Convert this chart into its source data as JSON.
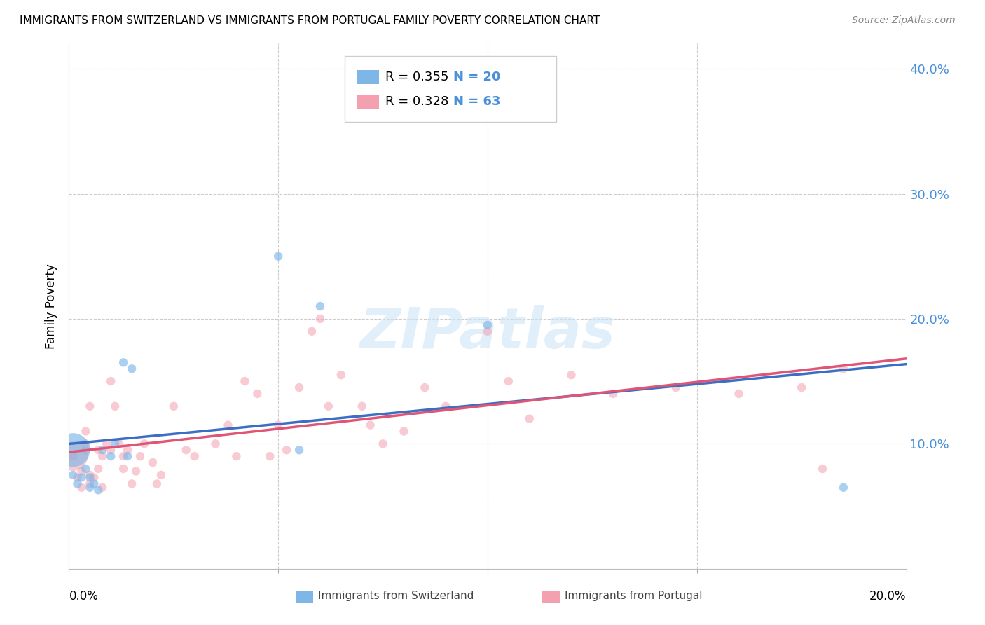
{
  "title": "IMMIGRANTS FROM SWITZERLAND VS IMMIGRANTS FROM PORTUGAL FAMILY POVERTY CORRELATION CHART",
  "source": "Source: ZipAtlas.com",
  "ylabel": "Family Poverty",
  "xlim": [
    0.0,
    0.2
  ],
  "ylim": [
    0.0,
    0.42
  ],
  "yticks": [
    0.1,
    0.2,
    0.3,
    0.4
  ],
  "ytick_labels": [
    "10.0%",
    "20.0%",
    "30.0%",
    "40.0%"
  ],
  "xticks": [
    0.0,
    0.05,
    0.1,
    0.15,
    0.2
  ],
  "watermark": "ZIPatlas",
  "legend_r1": "R = 0.355",
  "legend_n1": "N = 20",
  "legend_r2": "R = 0.328",
  "legend_n2": "N = 63",
  "label1": "Immigrants from Switzerland",
  "label2": "Immigrants from Portugal",
  "color1": "#7eb6e8",
  "color2": "#f4a0b0",
  "trendline1_color": "#3a6fc4",
  "trendline2_color": "#e05575",
  "background_color": "#ffffff",
  "swiss_x": [
    0.001,
    0.002,
    0.003,
    0.004,
    0.005,
    0.005,
    0.006,
    0.007,
    0.008,
    0.01,
    0.011,
    0.013,
    0.014,
    0.015,
    0.05,
    0.055,
    0.06,
    0.1,
    0.185,
    0.001
  ],
  "swiss_y": [
    0.075,
    0.068,
    0.073,
    0.08,
    0.065,
    0.073,
    0.068,
    0.063,
    0.095,
    0.09,
    0.1,
    0.165,
    0.09,
    0.16,
    0.25,
    0.095,
    0.21,
    0.195,
    0.065,
    0.095
  ],
  "swiss_size": [
    80,
    80,
    80,
    80,
    80,
    80,
    80,
    80,
    80,
    80,
    80,
    80,
    80,
    80,
    80,
    80,
    80,
    80,
    80,
    1200
  ],
  "port_x": [
    0.001,
    0.002,
    0.003,
    0.003,
    0.004,
    0.004,
    0.004,
    0.005,
    0.005,
    0.005,
    0.006,
    0.007,
    0.007,
    0.008,
    0.008,
    0.009,
    0.01,
    0.01,
    0.011,
    0.012,
    0.013,
    0.013,
    0.014,
    0.015,
    0.016,
    0.017,
    0.018,
    0.02,
    0.021,
    0.022,
    0.025,
    0.028,
    0.03,
    0.035,
    0.038,
    0.04,
    0.042,
    0.045,
    0.048,
    0.05,
    0.052,
    0.055,
    0.058,
    0.06,
    0.062,
    0.065,
    0.07,
    0.072,
    0.075,
    0.08,
    0.085,
    0.09,
    0.1,
    0.105,
    0.11,
    0.12,
    0.13,
    0.145,
    0.16,
    0.175,
    0.18,
    0.185,
    0.001
  ],
  "port_y": [
    0.09,
    0.073,
    0.065,
    0.078,
    0.1,
    0.095,
    0.11,
    0.068,
    0.075,
    0.13,
    0.073,
    0.08,
    0.095,
    0.065,
    0.09,
    0.1,
    0.15,
    0.095,
    0.13,
    0.1,
    0.08,
    0.09,
    0.095,
    0.068,
    0.078,
    0.09,
    0.1,
    0.085,
    0.068,
    0.075,
    0.13,
    0.095,
    0.09,
    0.1,
    0.115,
    0.09,
    0.15,
    0.14,
    0.09,
    0.115,
    0.095,
    0.145,
    0.19,
    0.2,
    0.13,
    0.155,
    0.13,
    0.115,
    0.1,
    0.11,
    0.145,
    0.13,
    0.19,
    0.15,
    0.12,
    0.155,
    0.14,
    0.145,
    0.14,
    0.145,
    0.08,
    0.16,
    0.09
  ],
  "port_size": [
    80,
    80,
    80,
    80,
    80,
    80,
    80,
    80,
    80,
    80,
    80,
    80,
    80,
    80,
    80,
    80,
    80,
    80,
    80,
    80,
    80,
    80,
    80,
    80,
    80,
    80,
    80,
    80,
    80,
    80,
    80,
    80,
    80,
    80,
    80,
    80,
    80,
    80,
    80,
    80,
    80,
    80,
    80,
    80,
    80,
    80,
    80,
    80,
    80,
    80,
    80,
    80,
    80,
    80,
    80,
    80,
    80,
    80,
    80,
    80,
    80,
    80,
    900
  ]
}
